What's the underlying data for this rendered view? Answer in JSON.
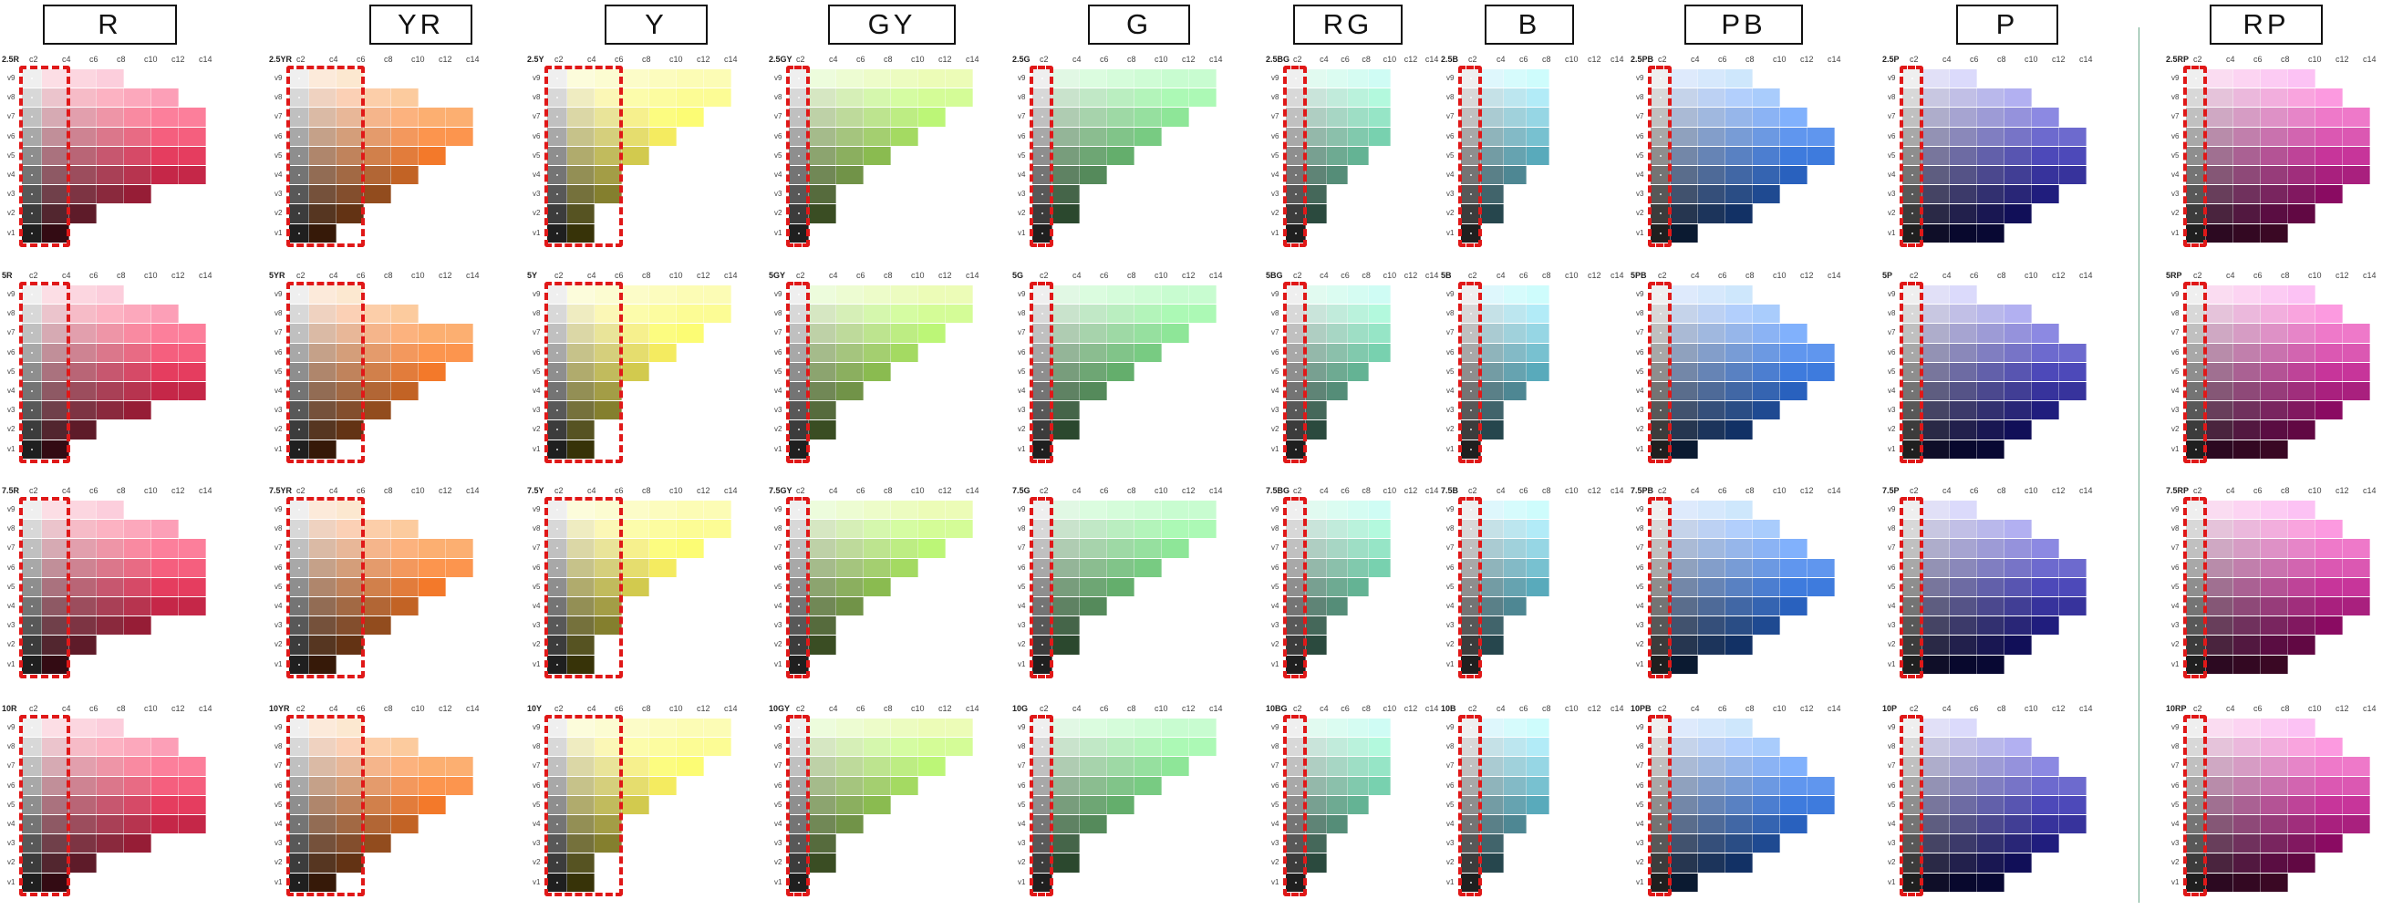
{
  "hues": [
    "R",
    "YR",
    "Y",
    "GY",
    "G",
    "RG",
    "B",
    "PB",
    "P",
    "RP"
  ],
  "page_labels": [
    [
      "2.5R",
      "2.5YR",
      "2.5Y",
      "2.5GY",
      "2.5G",
      "2.5BG",
      "2.5B",
      "2.5PB",
      "2.5P",
      "2.5RP"
    ],
    [
      "5R",
      "5YR",
      "5Y",
      "5GY",
      "5G",
      "5BG",
      "5B",
      "5PB",
      "5P",
      "5RP"
    ],
    [
      "7.5R",
      "7.5YR",
      "7.5Y",
      "7.5GY",
      "7.5G",
      "7.5BG",
      "7.5B",
      "7.5PB",
      "7.5P",
      "7.5RP"
    ],
    [
      "10R",
      "10YR",
      "10Y",
      "10GY",
      "10G",
      "10BG",
      "10B",
      "10PB",
      "10P",
      "10RP"
    ]
  ],
  "chroma_labels": [
    "c2",
    "c4",
    "c6",
    "c8",
    "c10",
    "c12",
    "c14"
  ],
  "value_labels": [
    "v9",
    "v8",
    "v7",
    "v6",
    "v5",
    "v4",
    "v3",
    "v2",
    "v1"
  ],
  "hue_colors": {
    "R": "#e0284e",
    "YR": "#f06a14",
    "Y": "#f2e418",
    "GY": "#7ccb1c",
    "G": "#3cb64a",
    "RG": "#3cbf8c",
    "B": "#2ab0cc",
    "PB": "#2a6cd8",
    "P": "#3a36b0",
    "RP": "#c0208e"
  },
  "highlight_color": "#e01818"
}
